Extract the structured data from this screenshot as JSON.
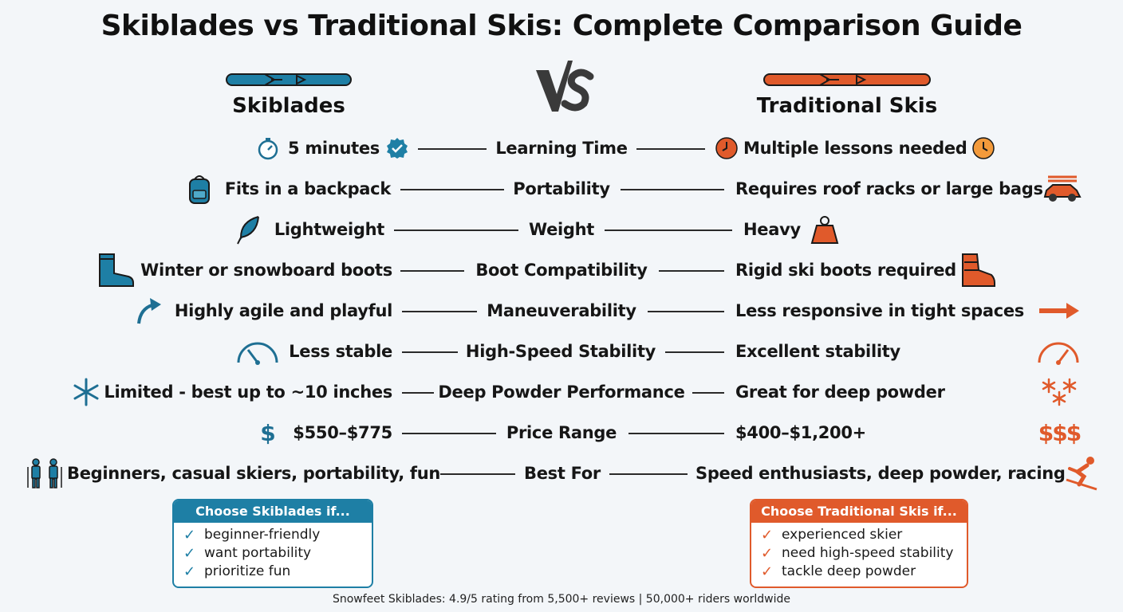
{
  "title": "Skiblades vs Traditional Skis: Complete Comparison Guide",
  "colors": {
    "blue": "#1e7fa5",
    "orange": "#e05a2b",
    "text": "#161616"
  },
  "left_header": "Skiblades",
  "right_header": "Traditional Skis",
  "vs_text": "VS",
  "rows": [
    {
      "left": "5 minutes",
      "category": "Learning Time",
      "right": "Multiple lessons needed",
      "left_icon": "stopwatch-icon",
      "right_icon": "clock-icon"
    },
    {
      "left": "Fits in a backpack",
      "category": "Portability",
      "right": "Requires roof racks or large bags",
      "left_icon": "backpack-icon",
      "right_icon": "car-roof-rack-icon"
    },
    {
      "left": "Lightweight",
      "category": "Weight",
      "right": "Heavy",
      "left_icon": "feather-icon",
      "right_icon": "weight-icon"
    },
    {
      "left": "Winter or snowboard boots",
      "category": "Boot Compatibility",
      "right": "Rigid ski boots required",
      "left_icon": "boot-icon",
      "right_icon": "ski-boot-icon"
    },
    {
      "left": "Highly agile and playful",
      "category": "Maneuverability",
      "right": "Less responsive in tight spaces",
      "left_icon": "curved-arrow-icon",
      "right_icon": "straight-arrow-icon"
    },
    {
      "left": "Less stable",
      "category": "High-Speed Stability",
      "right": "Excellent stability",
      "left_icon": "speedometer-low-icon",
      "right_icon": "speedometer-high-icon"
    },
    {
      "left": "Limited - best up to ~10 inches",
      "category": "Deep Powder Performance",
      "right": "Great for deep powder",
      "left_icon": "snowflake-icon",
      "right_icon": "snowflakes-icon"
    },
    {
      "left": "$550–$775",
      "category": "Price Range",
      "right": "$400–$1,200+",
      "left_icon": "dollar-icon",
      "right_icon": "triple-dollar-icon",
      "right_icon_text": "$$$",
      "left_icon_text": "$"
    },
    {
      "left": "Beginners, casual skiers, portability, fun",
      "category": "Best For",
      "right": "Speed enthusiasts, deep powder, racing",
      "left_icon": "skiers-icon",
      "right_icon": "racing-skier-icon"
    }
  ],
  "left_box": {
    "title": "Choose Skiblades if...",
    "items": [
      "beginner-friendly",
      "want portability",
      "prioritize fun"
    ]
  },
  "right_box": {
    "title": "Choose Traditional Skis if...",
    "items": [
      "experienced skier",
      "need high-speed stability",
      "tackle deep powder"
    ]
  },
  "check_mark": "✓",
  "footer": "Snowfeet Skiblades: 4.9/5 rating from 5,500+ reviews | 50,000+ riders worldwide"
}
